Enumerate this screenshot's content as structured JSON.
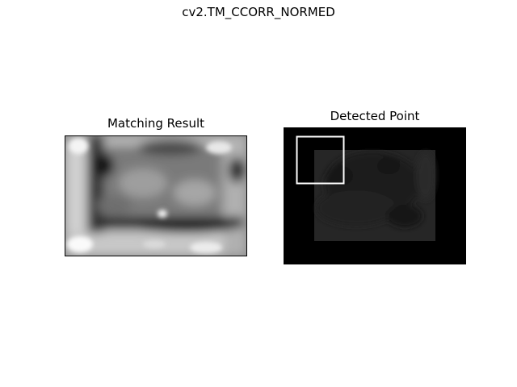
{
  "figure": {
    "title": "cv2.TM_CCORR_NORMED"
  },
  "panels": [
    {
      "title": "Matching Result",
      "content": "heatmap"
    },
    {
      "title": "Detected Point",
      "content": "image-with-box"
    }
  ],
  "colors": {
    "background": "#ffffff",
    "detected_background": "#000000",
    "box": "#ffffff"
  }
}
